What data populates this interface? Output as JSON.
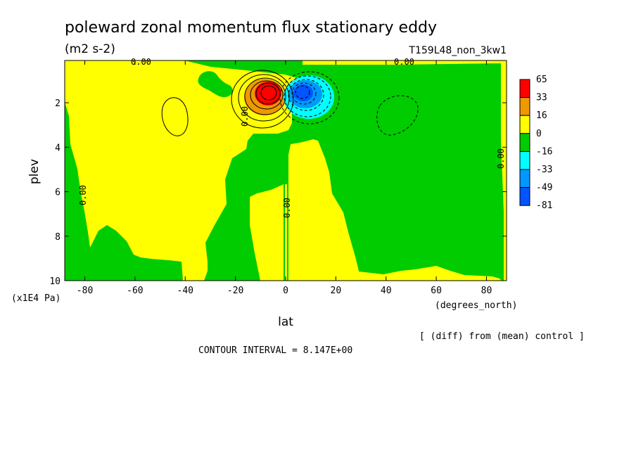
{
  "chart_data": {
    "type": "heatmap",
    "title": "poleward zonal momentum flux stationary eddy",
    "units": "(m2 s-2)",
    "run_label": "T159L48_non_3kw1",
    "xlabel": "lat",
    "xunits": "(degrees_north)",
    "ylabel": "plev",
    "yunits": "(x1E4 Pa)",
    "xlim": [
      -88,
      88
    ],
    "ylim": [
      10,
      0.1
    ],
    "x_ticks": [
      "-80",
      "-60",
      "-40",
      "-20",
      "0",
      "20",
      "40",
      "60",
      "80"
    ],
    "x_tick_values": [
      -80,
      -60,
      -40,
      -20,
      0,
      20,
      40,
      60,
      80
    ],
    "y_ticks": [
      "2",
      "4",
      "6",
      "8",
      "10"
    ],
    "y_tick_values": [
      2,
      4,
      6,
      8,
      10
    ],
    "contour_interval": "CONTOUR INTERVAL = 8.147E+00",
    "footnote": "[ (diff) from (mean) control ]",
    "zero_contour_label": "0.00",
    "colorbar": {
      "levels": [
        "65",
        "33",
        "16",
        "0",
        "-16",
        "-33",
        "-49",
        "-81"
      ],
      "colors": [
        "#ff0000",
        "#ee9900",
        "#ffff00",
        "#00cc00",
        "#00ffff",
        "#0099ff",
        "#0055ff"
      ]
    },
    "features": [
      {
        "kind": "max",
        "lat": -7,
        "plev": 1.4,
        "value": 65
      },
      {
        "kind": "min",
        "lat": 7,
        "plev": 1.4,
        "value": -81
      }
    ]
  }
}
